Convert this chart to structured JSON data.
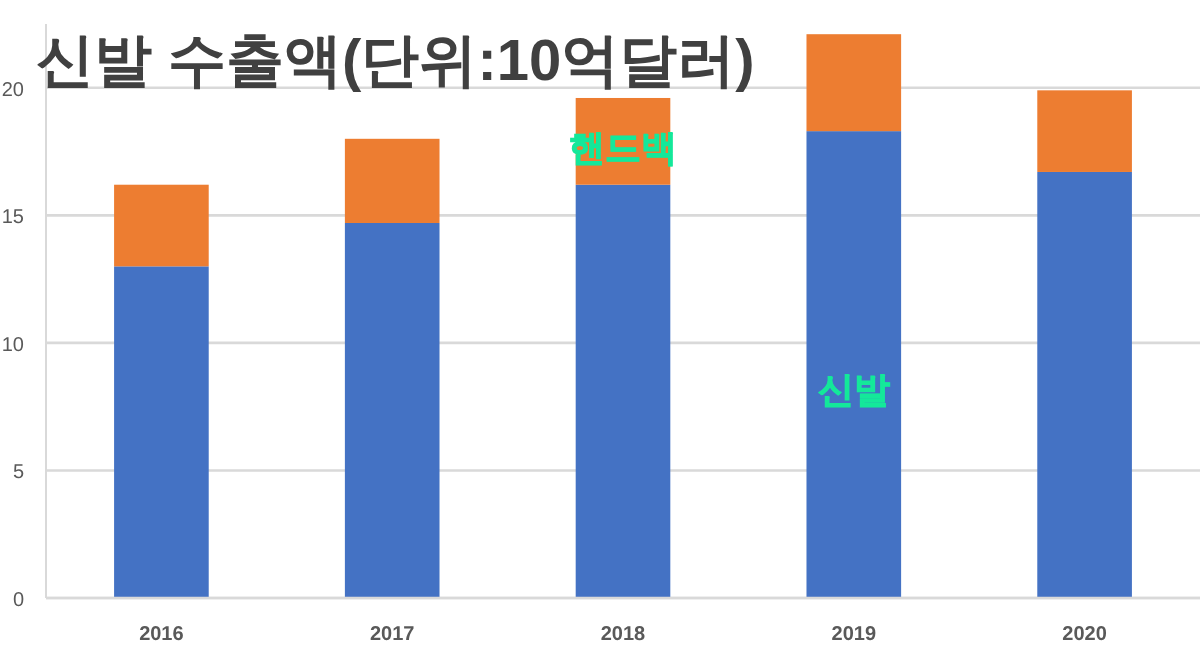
{
  "chart_data": {
    "type": "bar",
    "title": "신발 수출액(단위:10억달러)",
    "stacked": true,
    "legend": false,
    "grid": "y",
    "categories": [
      "2016",
      "2017",
      "2018",
      "2019",
      "2020"
    ],
    "series": [
      {
        "name": "신발",
        "color": "#4472c4",
        "values": [
          13.0,
          14.7,
          16.2,
          18.3,
          16.7
        ]
      },
      {
        "name": "핸드백",
        "color": "#ed7d31",
        "values": [
          3.2,
          3.3,
          3.4,
          3.8,
          3.2
        ]
      }
    ],
    "ylim": [
      0,
      22.5
    ],
    "yticks": [
      0,
      5,
      10,
      15,
      20
    ]
  }
}
